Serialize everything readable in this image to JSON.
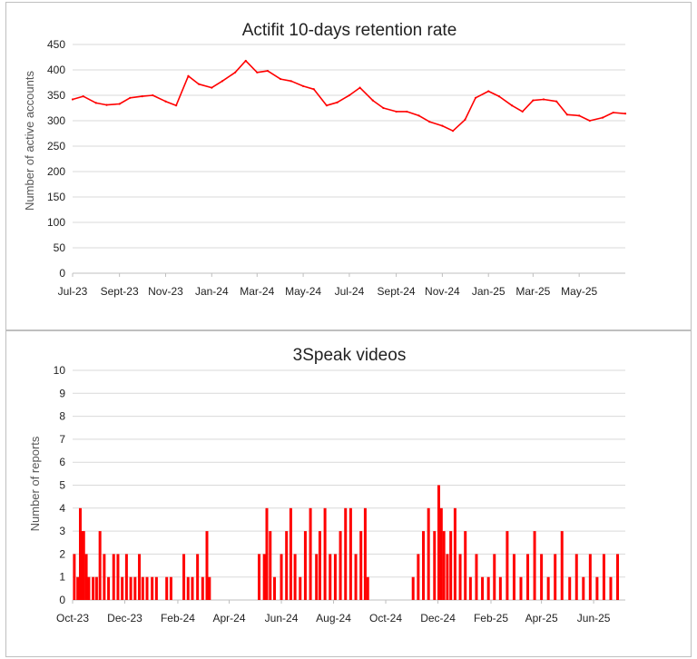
{
  "chart_data": [
    {
      "type": "line",
      "title": "Actifit 10-days retention rate",
      "xlabel": "",
      "ylabel": "Number of active accounts",
      "ylim": [
        0,
        450
      ],
      "yticks": [
        "0",
        "50",
        "100",
        "150",
        "200",
        "250",
        "300",
        "350",
        "400",
        "450"
      ],
      "xticks": [
        "Jul-23",
        "Sept-23",
        "Nov-23",
        "Jan-24",
        "Mar-24",
        "May-24",
        "Jul-24",
        "Sept-24",
        "Nov-24",
        "Jan-25",
        "Mar-25",
        "May-25"
      ],
      "grid": true,
      "color": "#ff0000",
      "series": [
        {
          "x": [
            "2023-07-01",
            "2023-07-15",
            "2023-08-01",
            "2023-08-15",
            "2023-09-01",
            "2023-09-15",
            "2023-10-01",
            "2023-10-15",
            "2023-11-01",
            "2023-11-15",
            "2023-12-01",
            "2023-12-15",
            "2024-01-01",
            "2024-01-15",
            "2024-02-01",
            "2024-02-15",
            "2024-03-01",
            "2024-03-15",
            "2024-04-01",
            "2024-04-15",
            "2024-05-01",
            "2024-05-15",
            "2024-06-01",
            "2024-06-15",
            "2024-07-01",
            "2024-07-15",
            "2024-08-01",
            "2024-08-15",
            "2024-09-01",
            "2024-09-15",
            "2024-10-01",
            "2024-10-15",
            "2024-11-01",
            "2024-11-15",
            "2024-12-01",
            "2024-12-15",
            "2025-01-01",
            "2025-01-15",
            "2025-02-01",
            "2025-02-15",
            "2025-03-01",
            "2025-03-15",
            "2025-04-01",
            "2025-04-15",
            "2025-05-01",
            "2025-05-15",
            "2025-06-01",
            "2025-06-15",
            "2025-07-01"
          ],
          "values": [
            342,
            348,
            335,
            331,
            333,
            345,
            348,
            350,
            338,
            330,
            388,
            372,
            365,
            378,
            395,
            418,
            395,
            398,
            382,
            378,
            368,
            362,
            330,
            336,
            350,
            365,
            340,
            325,
            318,
            318,
            310,
            298,
            290,
            280,
            302,
            345,
            358,
            348,
            330,
            318,
            340,
            342,
            338,
            312,
            310,
            300,
            306,
            316,
            314
          ]
        }
      ]
    },
    {
      "type": "bar",
      "title": "3Speak videos",
      "xlabel": "",
      "ylabel": "Number of reports",
      "ylim": [
        0,
        10
      ],
      "yticks": [
        "0",
        "1",
        "2",
        "3",
        "4",
        "5",
        "6",
        "7",
        "8",
        "9",
        "10"
      ],
      "xticks": [
        "Oct-23",
        "Dec-23",
        "Feb-24",
        "Apr-24",
        "Jun-24",
        "Aug-24",
        "Oct-24",
        "Dec-24",
        "Feb-25",
        "Apr-25",
        "Jun-25"
      ],
      "grid": true,
      "color": "#ff0000",
      "series": [
        {
          "x": [
            "2023-10-03",
            "2023-10-07",
            "2023-10-10",
            "2023-10-12",
            "2023-10-14",
            "2023-10-17",
            "2023-10-20",
            "2023-10-25",
            "2023-10-29",
            "2023-11-02",
            "2023-11-07",
            "2023-11-12",
            "2023-11-18",
            "2023-11-23",
            "2023-11-28",
            "2023-12-03",
            "2023-12-08",
            "2023-12-13",
            "2023-12-18",
            "2023-12-22",
            "2023-12-27",
            "2024-01-02",
            "2024-01-07",
            "2024-01-19",
            "2024-01-24",
            "2024-02-08",
            "2024-02-13",
            "2024-02-18",
            "2024-02-24",
            "2024-03-01",
            "2024-03-06",
            "2024-03-09",
            "2024-05-06",
            "2024-05-12",
            "2024-05-15",
            "2024-05-19",
            "2024-05-24",
            "2024-06-01",
            "2024-06-07",
            "2024-06-12",
            "2024-06-17",
            "2024-06-23",
            "2024-06-29",
            "2024-07-05",
            "2024-07-12",
            "2024-07-16",
            "2024-07-22",
            "2024-07-28",
            "2024-08-03",
            "2024-08-09",
            "2024-08-15",
            "2024-08-21",
            "2024-08-27",
            "2024-09-02",
            "2024-09-07",
            "2024-09-10",
            "2024-11-02",
            "2024-11-08",
            "2024-11-14",
            "2024-11-20",
            "2024-11-27",
            "2024-12-02",
            "2024-12-05",
            "2024-12-08",
            "2024-12-12",
            "2024-12-16",
            "2024-12-21",
            "2024-12-27",
            "2025-01-02",
            "2025-01-08",
            "2025-01-15",
            "2025-01-22",
            "2025-01-29",
            "2025-02-05",
            "2025-02-12",
            "2025-02-20",
            "2025-02-28",
            "2025-03-08",
            "2025-03-16",
            "2025-03-24",
            "2025-04-01",
            "2025-04-09",
            "2025-04-17",
            "2025-04-25",
            "2025-05-04",
            "2025-05-12",
            "2025-05-20",
            "2025-05-28",
            "2025-06-05",
            "2025-06-13",
            "2025-06-21",
            "2025-06-29"
          ],
          "values": [
            2,
            1,
            4,
            3,
            3,
            2,
            1,
            1,
            1,
            3,
            2,
            1,
            2,
            2,
            1,
            2,
            1,
            1,
            2,
            1,
            1,
            1,
            1,
            1,
            1,
            2,
            1,
            1,
            2,
            1,
            3,
            1,
            2,
            2,
            4,
            3,
            1,
            2,
            3,
            4,
            2,
            1,
            3,
            4,
            2,
            3,
            4,
            2,
            2,
            3,
            4,
            4,
            2,
            3,
            4,
            1,
            1,
            2,
            3,
            4,
            3,
            5,
            4,
            3,
            2,
            3,
            4,
            2,
            3,
            1,
            2,
            1,
            1,
            2,
            1,
            3,
            2,
            1,
            2,
            3,
            2,
            1,
            2,
            3,
            1,
            2,
            1,
            2,
            1,
            2,
            1,
            2
          ]
        }
      ]
    }
  ]
}
